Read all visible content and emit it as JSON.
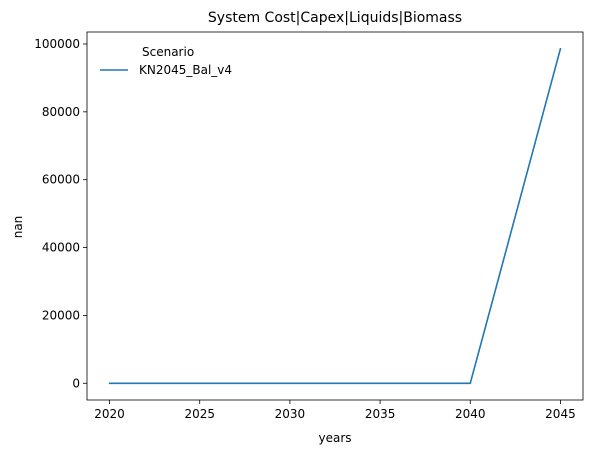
{
  "chart_data": {
    "type": "line",
    "title": "System Cost|Capex|Liquids|Biomass",
    "xlabel": "years",
    "ylabel": "nan",
    "x": [
      2020,
      2025,
      2030,
      2035,
      2040,
      2045
    ],
    "xticks": [
      "2020",
      "2025",
      "2030",
      "2035",
      "2040",
      "2045"
    ],
    "yticks": [
      "0",
      "20000",
      "40000",
      "60000",
      "80000",
      "100000"
    ],
    "ytick_values": [
      0,
      20000,
      40000,
      60000,
      80000,
      100000
    ],
    "xlim": [
      2018.75,
      2046.25
    ],
    "ylim": [
      -4930,
      103530
    ],
    "grid": false,
    "legend": {
      "title": "Scenario",
      "placement": "top-left"
    },
    "series": [
      {
        "name": "KN2045_Bal_v4",
        "color": "#1f77b4",
        "values": [
          0,
          0,
          0,
          0,
          0,
          98600
        ]
      }
    ]
  }
}
